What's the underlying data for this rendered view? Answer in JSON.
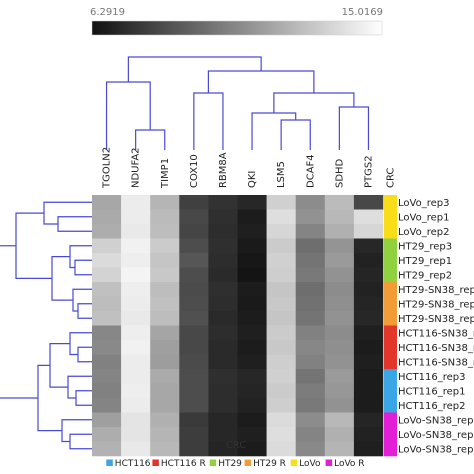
{
  "chart_data": {
    "type": "heatmap",
    "color_scale": {
      "min_label": "6.2919",
      "max_label": "15.0169",
      "min_value": 6.2919,
      "max_value": 15.0169,
      "low_color": "#ffffff",
      "high_color": "#111111"
    },
    "columns": [
      "TGOLN2",
      "NDUFA2",
      "TIMP1",
      "COX10",
      "RBM8A",
      "QKI",
      "LSM5",
      "DCAF4",
      "SDHD",
      "PTGS2"
    ],
    "annotation_column_label": "CRC",
    "rows": [
      "LoVo_rep3",
      "LoVo_rep1",
      "LoVo_rep2",
      "HT29_rep3",
      "HT29_rep1",
      "HT29_rep2",
      "HT29-SN38_rep",
      "HT29-SN38_rep",
      "HT29-SN38_rep",
      "HCT116-SN38_r",
      "HCT116-SN38_r",
      "HCT116-SN38_r",
      "HCT116_rep3",
      "HCT116_rep1",
      "HCT116_rep2",
      "LoVo-SN38_rep",
      "LoVo-SN38_rep",
      "LoVo-SN38_rep"
    ],
    "row_groups": [
      "LoVo",
      "LoVo",
      "LoVo",
      "HT29",
      "HT29",
      "HT29",
      "HT29 R",
      "HT29 R",
      "HT29 R",
      "HCT116 R",
      "HCT116 R",
      "HCT116 R",
      "HCT116",
      "HCT116",
      "HCT116",
      "LoVo R",
      "LoVo R",
      "LoVo R"
    ],
    "values": [
      [
        9.5,
        7.0,
        9.0,
        13.3,
        13.8,
        14.2,
        8.0,
        10.5,
        8.8,
        13.0
      ],
      [
        9.4,
        7.0,
        8.8,
        13.0,
        13.9,
        14.6,
        7.5,
        10.3,
        8.9,
        7.5
      ],
      [
        9.3,
        7.1,
        8.7,
        13.1,
        14.0,
        14.5,
        7.8,
        10.8,
        9.2,
        7.8
      ],
      [
        8.0,
        6.8,
        8.2,
        12.8,
        13.9,
        14.7,
        8.2,
        11.6,
        10.2,
        14.2
      ],
      [
        7.6,
        6.9,
        8.4,
        12.5,
        14.0,
        14.8,
        8.0,
        11.4,
        10.0,
        14.4
      ],
      [
        7.9,
        6.7,
        8.3,
        12.8,
        14.1,
        14.9,
        8.1,
        11.2,
        10.3,
        14.3
      ],
      [
        8.6,
        6.9,
        8.7,
        12.9,
        13.9,
        14.6,
        8.4,
        11.6,
        10.5,
        14.4
      ],
      [
        8.7,
        7.0,
        8.6,
        12.8,
        14.0,
        14.7,
        8.3,
        11.5,
        10.4,
        14.3
      ],
      [
        8.6,
        7.1,
        8.7,
        12.7,
        14.1,
        14.6,
        8.4,
        11.4,
        10.3,
        14.2
      ],
      [
        10.7,
        6.9,
        9.6,
        13.0,
        14.0,
        14.5,
        8.2,
        10.9,
        10.5,
        14.5
      ],
      [
        10.6,
        6.8,
        9.8,
        13.0,
        14.1,
        14.6,
        8.3,
        10.7,
        10.4,
        14.6
      ],
      [
        10.9,
        7.0,
        9.9,
        12.9,
        14.1,
        14.5,
        8.1,
        10.9,
        10.3,
        14.5
      ],
      [
        10.8,
        7.0,
        9.4,
        12.8,
        13.9,
        14.2,
        8.0,
        11.4,
        10.0,
        14.6
      ],
      [
        10.9,
        6.9,
        9.5,
        12.8,
        14.0,
        14.3,
        8.2,
        11.1,
        10.1,
        14.6
      ],
      [
        10.8,
        7.0,
        9.5,
        12.8,
        14.0,
        14.4,
        8.1,
        11.2,
        10.3,
        14.6
      ],
      [
        9.8,
        7.3,
        9.2,
        13.5,
        14.2,
        14.6,
        7.6,
        10.5,
        8.9,
        14.3
      ],
      [
        9.3,
        7.3,
        9.0,
        13.4,
        14.2,
        14.5,
        7.5,
        10.8,
        9.2,
        14.4
      ],
      [
        9.1,
        7.1,
        8.9,
        13.4,
        14.3,
        14.6,
        7.6,
        10.6,
        9.0,
        14.5
      ]
    ],
    "x_axis_label": "CRC",
    "legend": [
      {
        "name": "HCT116",
        "color": "#3aa6e6"
      },
      {
        "name": "HCT116 R",
        "color": "#e2362b"
      },
      {
        "name": "HT29",
        "color": "#8fd13f"
      },
      {
        "name": "HT29 R",
        "color": "#f29c38"
      },
      {
        "name": "LoVo",
        "color": "#f8dd18"
      },
      {
        "name": "LoVo R",
        "color": "#e21ed6"
      }
    ],
    "group_colors": {
      "HCT116": "#3aa6e6",
      "HCT116 R": "#e2362b",
      "HT29": "#8fd13f",
      "HT29 R": "#f29c38",
      "LoVo": "#f8dd18",
      "LoVo R": "#e21ed6"
    }
  }
}
